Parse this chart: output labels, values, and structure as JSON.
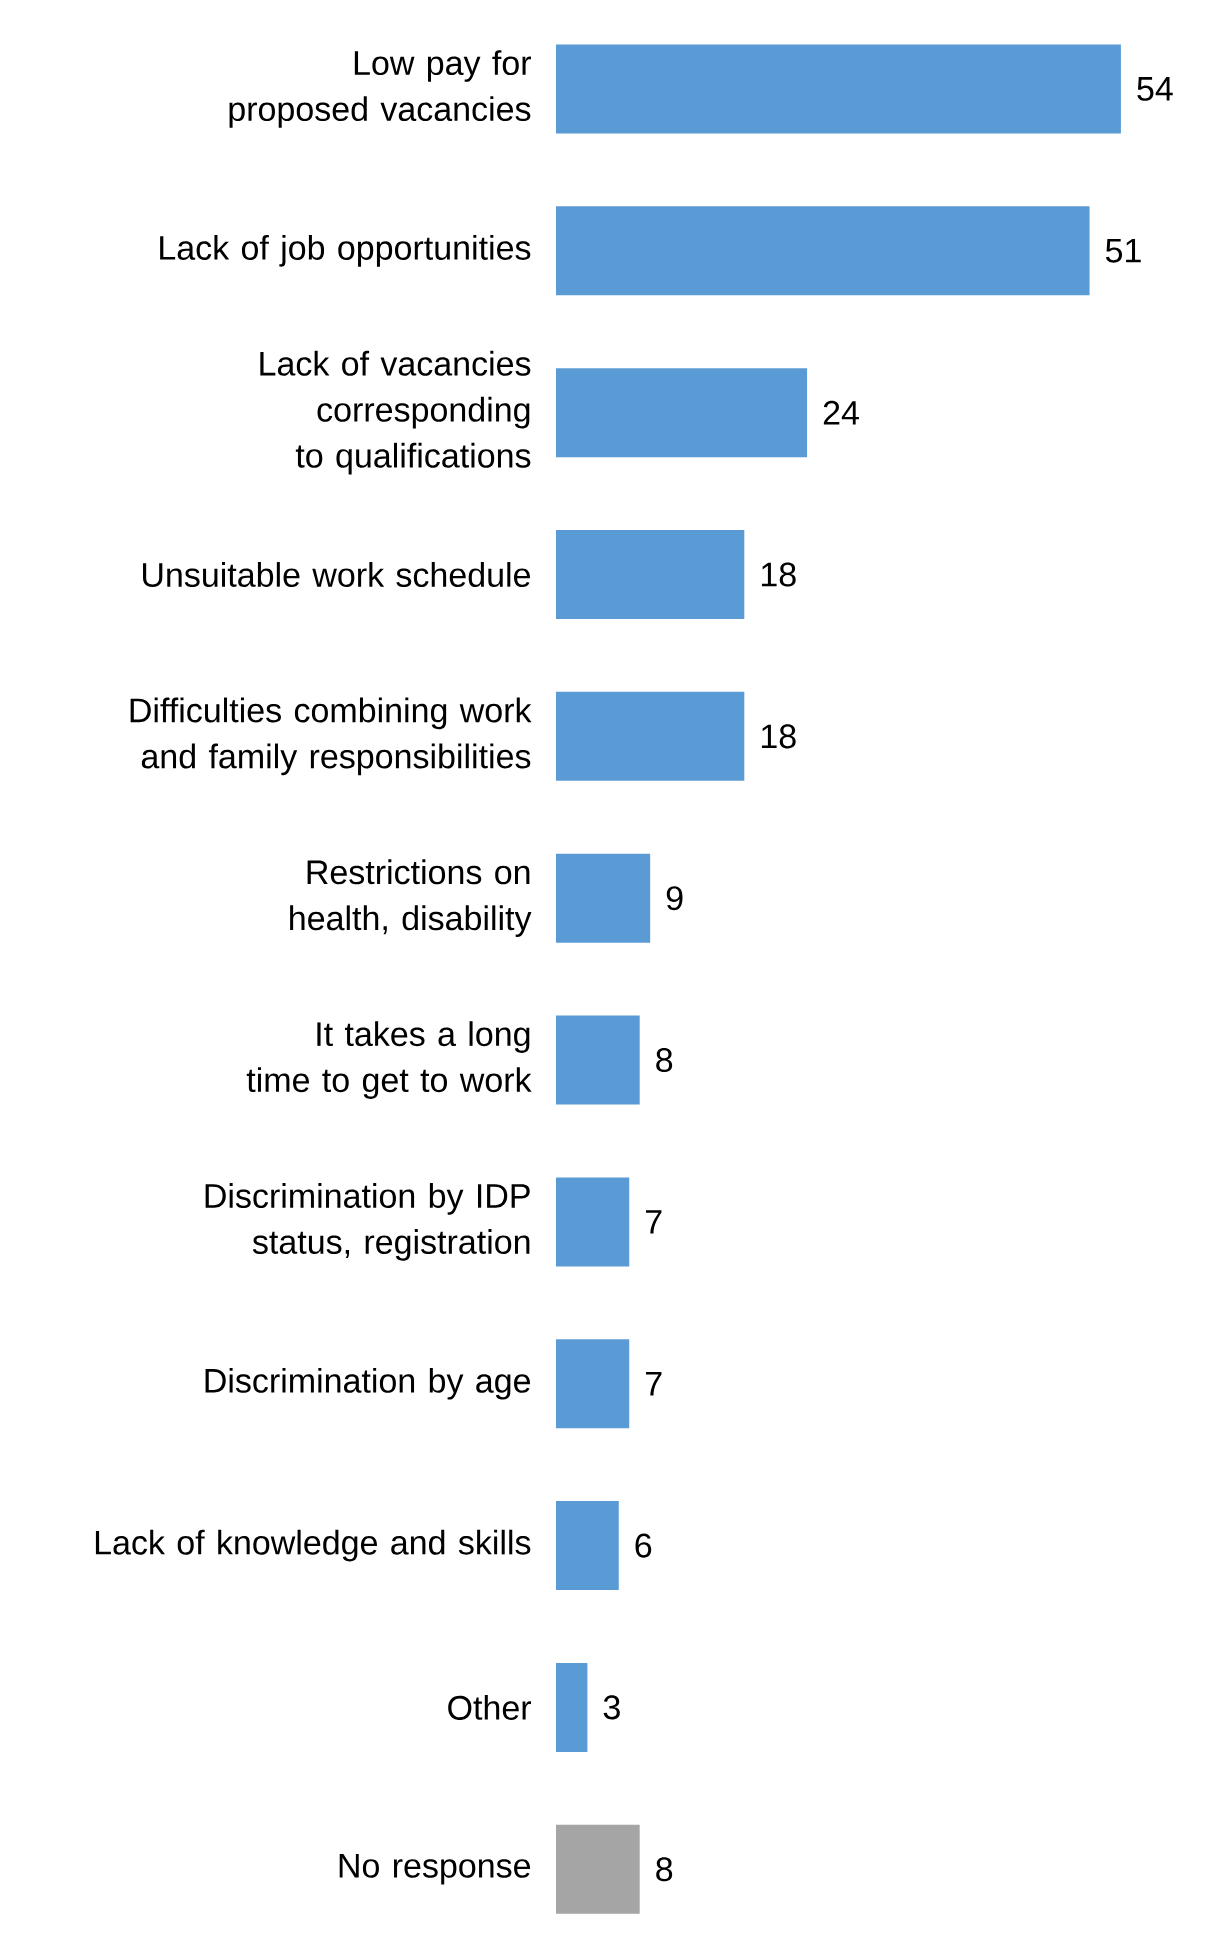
{
  "chart_data": {
    "type": "bar",
    "orientation": "horizontal",
    "data_labels": true,
    "categories": [
      "Low pay for proposed vacancies",
      "Lack of job opportunities",
      "Lack of vacancies corresponding to qualifications",
      "Unsuitable work schedule",
      "Difficulties combining work and family responsibilities",
      "Restrictions on health, disability",
      "It takes a long time to get to work",
      "Discrimination by IDP status, registration",
      "Discrimination by age",
      "Lack of knowledge and skills",
      "Other",
      "No response"
    ],
    "values": [
      54,
      51,
      24,
      18,
      18,
      9,
      8,
      7,
      7,
      6,
      3,
      8
    ],
    "colors": [
      "#5b9bd5",
      "#5b9bd5",
      "#5b9bd5",
      "#5b9bd5",
      "#5b9bd5",
      "#5b9bd5",
      "#5b9bd5",
      "#5b9bd5",
      "#5b9bd5",
      "#5b9bd5",
      "#5b9bd5",
      "#a5a5a5"
    ]
  }
}
